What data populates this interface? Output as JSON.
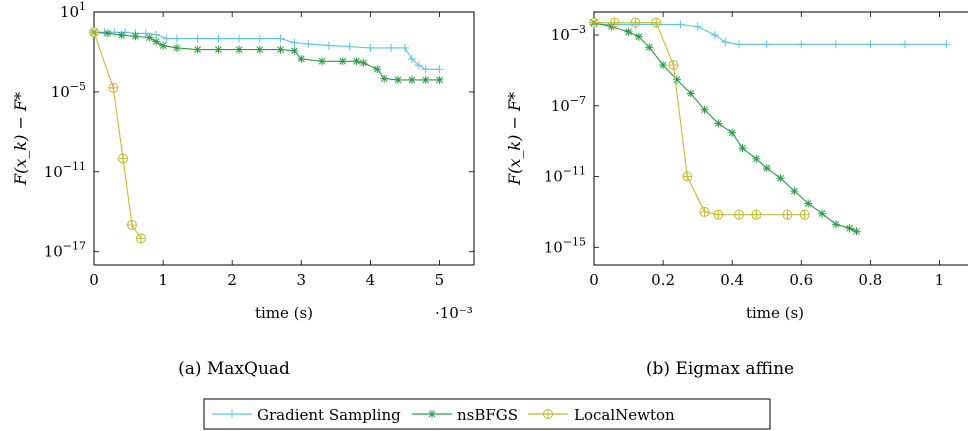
{
  "legend": {
    "items": [
      {
        "label": "Gradient Sampling",
        "color": "#5ec2e6",
        "marker": "plus"
      },
      {
        "label": "nsBFGS",
        "color": "#2e9a47",
        "marker": "star"
      },
      {
        "label": "LocalNewton",
        "color": "#c8b93a",
        "marker": "oplus"
      }
    ]
  },
  "chart_data": [
    {
      "type": "line",
      "caption": "(a) MaxQuad",
      "xlabel": "time (s)",
      "ylabel": "F(x_k) − F*",
      "x_scale_note": "·10⁻³",
      "yscale": "log",
      "xlim": [
        0,
        0.0055
      ],
      "ylim": [
        1e-18,
        10
      ],
      "x_ticks": [
        {
          "v": 0,
          "label": "0"
        },
        {
          "v": 0.001,
          "label": "1"
        },
        {
          "v": 0.002,
          "label": "2"
        },
        {
          "v": 0.003,
          "label": "3"
        },
        {
          "v": 0.004,
          "label": "4"
        },
        {
          "v": 0.005,
          "label": "5"
        }
      ],
      "y_ticks": [
        {
          "exp": 1,
          "label": "10",
          "sup": "1"
        },
        {
          "exp": -5,
          "label": "10",
          "sup": "−5"
        },
        {
          "exp": -11,
          "label": "10",
          "sup": "−11"
        },
        {
          "exp": -17,
          "label": "10",
          "sup": "−17"
        }
      ],
      "series": [
        {
          "name": "Gradient Sampling",
          "color": "#5ec2e6",
          "marker": "plus",
          "x": [
            0,
            0.00015,
            0.0003,
            0.00045,
            0.0006,
            0.00075,
            0.0009,
            0.00105,
            0.0012,
            0.0015,
            0.0018,
            0.0021,
            0.0024,
            0.0027,
            0.0029,
            0.0031,
            0.0034,
            0.0037,
            0.004,
            0.0043,
            0.0045,
            0.0046,
            0.0047,
            0.0048,
            0.005
          ],
          "y": [
            0.3,
            0.3,
            0.3,
            0.3,
            0.25,
            0.25,
            0.2,
            0.1,
            0.1,
            0.1,
            0.1,
            0.1,
            0.1,
            0.1,
            0.05,
            0.04,
            0.03,
            0.025,
            0.02,
            0.02,
            0.02,
            0.003,
            0.001,
            0.0005,
            0.0005
          ]
        },
        {
          "name": "nsBFGS",
          "color": "#2e9a47",
          "marker": "star",
          "x": [
            0,
            0.0002,
            0.0004,
            0.0006,
            0.0008,
            0.0009,
            0.001,
            0.0012,
            0.0015,
            0.0018,
            0.0021,
            0.0024,
            0.0027,
            0.0029,
            0.003,
            0.0033,
            0.0036,
            0.0038,
            0.0039,
            0.0041,
            0.0042,
            0.0044,
            0.0046,
            0.0048,
            0.005
          ],
          "y": [
            0.3,
            0.25,
            0.18,
            0.15,
            0.12,
            0.06,
            0.03,
            0.02,
            0.015,
            0.015,
            0.015,
            0.015,
            0.015,
            0.012,
            0.003,
            0.002,
            0.002,
            0.002,
            0.0015,
            0.0005,
            0.0001,
            8e-05,
            8e-05,
            8e-05,
            8e-05
          ]
        },
        {
          "name": "LocalNewton",
          "color": "#c8b93a",
          "marker": "oplus",
          "x": [
            0,
            0.00028,
            0.00042,
            0.00055,
            0.00068
          ],
          "y": [
            0.3,
            2e-05,
            1e-10,
            1e-15,
            1e-16
          ]
        }
      ]
    },
    {
      "type": "line",
      "caption": "(b) Eigmax affine",
      "xlabel": "time (s)",
      "ylabel": "F(x_k) − F*",
      "yscale": "log",
      "xlim": [
        0,
        1.1
      ],
      "ylim": [
        1e-16,
        0.02
      ],
      "x_ticks": [
        {
          "v": 0,
          "label": "0"
        },
        {
          "v": 0.2,
          "label": "0.2"
        },
        {
          "v": 0.4,
          "label": "0.4"
        },
        {
          "v": 0.6,
          "label": "0.6"
        },
        {
          "v": 0.8,
          "label": "0.8"
        },
        {
          "v": 1.0,
          "label": "1"
        }
      ],
      "y_ticks": [
        {
          "exp": -3,
          "label": "10",
          "sup": "−3"
        },
        {
          "exp": -7,
          "label": "10",
          "sup": "−7"
        },
        {
          "exp": -11,
          "label": "10",
          "sup": "−11"
        },
        {
          "exp": -15,
          "label": "10",
          "sup": "−15"
        }
      ],
      "series": [
        {
          "name": "Gradient Sampling",
          "color": "#5ec2e6",
          "marker": "plus",
          "x": [
            0,
            0.06,
            0.12,
            0.18,
            0.25,
            0.3,
            0.35,
            0.38,
            0.42,
            0.5,
            0.6,
            0.7,
            0.8,
            0.9,
            1.02
          ],
          "y": [
            0.004,
            0.004,
            0.004,
            0.004,
            0.004,
            0.003,
            0.001,
            0.0004,
            0.0003,
            0.0003,
            0.0003,
            0.0003,
            0.0003,
            0.0003,
            0.0003
          ]
        },
        {
          "name": "nsBFGS",
          "color": "#2e9a47",
          "marker": "star",
          "x": [
            0,
            0.05,
            0.1,
            0.13,
            0.16,
            0.2,
            0.24,
            0.28,
            0.32,
            0.36,
            0.4,
            0.43,
            0.47,
            0.5,
            0.54,
            0.58,
            0.62,
            0.66,
            0.7,
            0.74,
            0.76
          ],
          "y": [
            0.005,
            0.003,
            0.0015,
            0.0008,
            0.0002,
            2e-05,
            3e-06,
            5e-07,
            6e-08,
            1e-08,
            3e-09,
            4e-10,
            1e-10,
            3e-11,
            8e-12,
            1.5e-12,
            3e-13,
            8e-14,
            2e-14,
            1.2e-14,
            8e-15
          ]
        },
        {
          "name": "LocalNewton",
          "color": "#c8b93a",
          "marker": "oplus",
          "x": [
            0,
            0.06,
            0.12,
            0.18,
            0.23,
            0.27,
            0.32,
            0.36,
            0.42,
            0.47,
            0.56,
            0.61
          ],
          "y": [
            0.005,
            0.005,
            0.005,
            0.005,
            2e-05,
            1e-11,
            1e-13,
            7e-14,
            7e-14,
            7e-14,
            7e-14,
            7e-14
          ]
        }
      ]
    }
  ]
}
